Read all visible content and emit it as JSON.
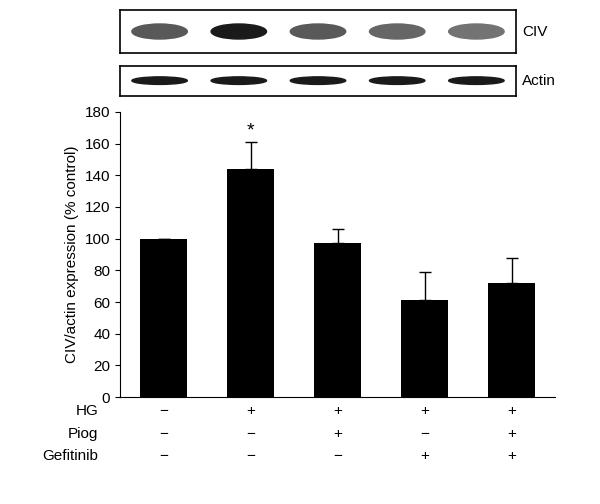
{
  "chart_data": {
    "type": "bar",
    "y_label": "CIV/actin expression (% control)",
    "categories": [
      null,
      null,
      null,
      null,
      null
    ],
    "values": [
      100,
      144,
      97,
      61,
      72
    ],
    "errors": [
      0,
      17,
      9,
      18,
      16
    ],
    "color": "#000000",
    "ylim": [
      0,
      180
    ],
    "yticks": [
      0,
      20,
      40,
      60,
      80,
      100,
      120,
      140,
      160,
      180
    ],
    "treatments": [
      {
        "name": "HG",
        "values": [
          "−",
          "+",
          "+",
          "+",
          "+"
        ]
      },
      {
        "name": "Piog",
        "values": [
          "−",
          "−",
          "+",
          "−",
          "+"
        ]
      },
      {
        "name": "Gefitinib",
        "values": [
          "−",
          "−",
          "−",
          "+",
          "+"
        ]
      }
    ],
    "annotations": [
      {
        "text": "*",
        "index": 1
      }
    ],
    "blot": {
      "bands": [
        "CIV",
        "Actin"
      ]
    }
  }
}
